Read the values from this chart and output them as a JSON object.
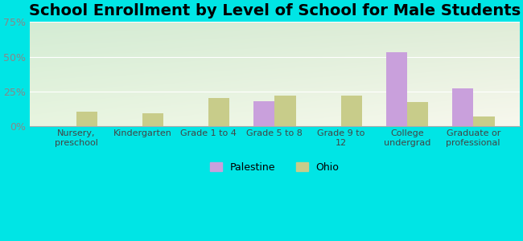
{
  "title": "School Enrollment by Level of School for Male Students",
  "categories": [
    "Nursery,\npreschool",
    "Kindergarten",
    "Grade 1 to 4",
    "Grade 5 to 8",
    "Grade 9 to\n12",
    "College\nundergrad",
    "Graduate or\nprofessional"
  ],
  "palestine_values": [
    0,
    0,
    0,
    18,
    0,
    53,
    27
  ],
  "ohio_values": [
    10,
    9,
    20,
    22,
    22,
    17,
    7
  ],
  "palestine_color": "#c9a0dc",
  "ohio_color": "#c8cc8a",
  "background_color": "#00e5e5",
  "grad_top_left": "#d4ecd4",
  "grad_bottom_right": "#f8f8ee",
  "title_fontsize": 14,
  "ytick_color": "#888888",
  "xtick_color": "#444444",
  "legend_labels": [
    "Palestine",
    "Ohio"
  ],
  "ylim": [
    0,
    75
  ],
  "yticks": [
    0,
    25,
    50,
    75
  ],
  "ytick_labels": [
    "0%",
    "25%",
    "50%",
    "75%"
  ],
  "bar_width": 0.32
}
